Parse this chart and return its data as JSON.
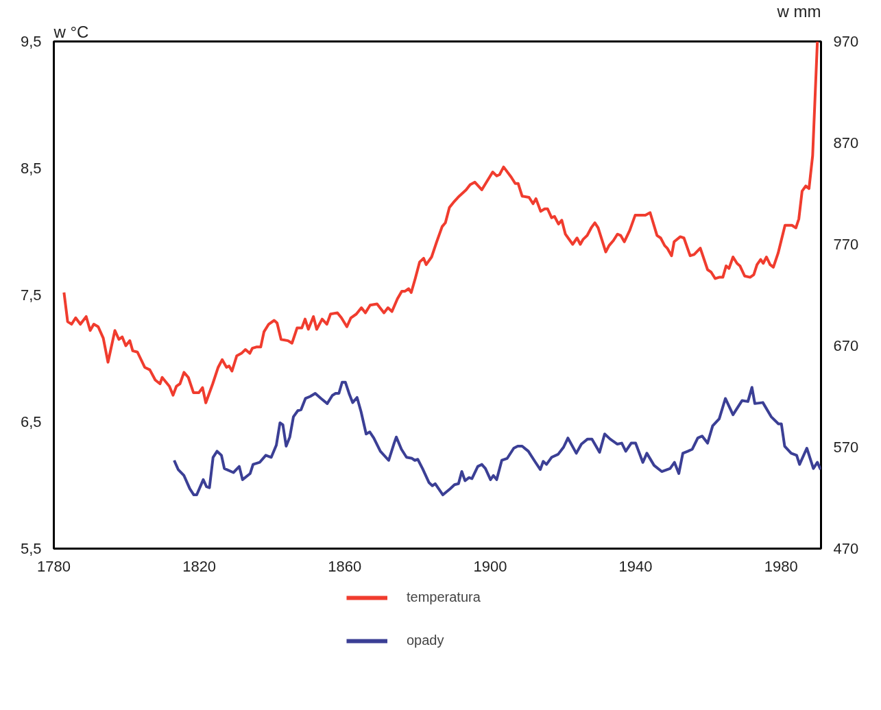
{
  "chart_data": {
    "type": "line",
    "ylabel": "w °C",
    "y2label": "w mm",
    "xlim": [
      1780,
      1991
    ],
    "xticks": [
      1780,
      1820,
      1860,
      1900,
      1940,
      1980
    ],
    "ylim": [
      5.5,
      9.5
    ],
    "yticks": [
      {
        "value": 5.5,
        "label": "5,5"
      },
      {
        "value": 6.5,
        "label": "6,5"
      },
      {
        "value": 7.5,
        "label": "7,5"
      },
      {
        "value": 8.5,
        "label": "8,5"
      },
      {
        "value": 9.5,
        "label": "9,5"
      }
    ],
    "y2lim": [
      470,
      970
    ],
    "y2ticks": [
      470,
      570,
      670,
      770,
      870,
      970
    ],
    "grid": false,
    "legend": "bottom",
    "line_style": "solid",
    "series": [
      {
        "name": "temperatura",
        "color": "#f03c2e",
        "x": [
          1782.8,
          1783.8,
          1784.9,
          1786,
          1787.3,
          1788.9,
          1790,
          1791,
          1792.2,
          1793.6,
          1794.9,
          1796.8,
          1797.9,
          1798.8,
          1799.8,
          1800.9,
          1801.7,
          1803,
          1805,
          1806.4,
          1807.9,
          1809.2,
          1809.8,
          1811.8,
          1812.8,
          1813.7,
          1814.7,
          1815.8,
          1817,
          1818.4,
          1819.9,
          1820.9,
          1821.8,
          1823.7,
          1825.2,
          1826.3,
          1827.5,
          1828.2,
          1829,
          1830.3,
          1831.6,
          1832.7,
          1833.9,
          1834.6,
          1835.7,
          1836.9,
          1837.8,
          1839.1,
          1840.6,
          1841.4,
          1842.5,
          1844.4,
          1845.5,
          1846.9,
          1848.2,
          1849.1,
          1850,
          1851.4,
          1852.3,
          1853.8,
          1855.1,
          1856.1,
          1858,
          1859.1,
          1860.6,
          1861.7,
          1863.2,
          1864.6,
          1865.7,
          1867,
          1868.9,
          1870.8,
          1871.9,
          1873,
          1874.5,
          1875.7,
          1876.6,
          1877.6,
          1878.3,
          1879.4,
          1880.6,
          1881.7,
          1882.4,
          1883.9,
          1885.3,
          1886.8,
          1887.7,
          1888.8,
          1890.2,
          1891.5,
          1893.4,
          1894.5,
          1895.8,
          1897.7,
          1899.2,
          1900.7,
          1901.8,
          1902.6,
          1903.7,
          1905.8,
          1906.9,
          1907.7,
          1908.8,
          1910.7,
          1911.8,
          1912.6,
          1913.9,
          1915.0,
          1915.8,
          1916.9,
          1917.7,
          1918.8,
          1919.7,
          1920.7,
          1922.7,
          1923.9,
          1924.8,
          1925.6,
          1926.7,
          1927.8,
          1928.8,
          1929.7,
          1931.8,
          1932.7,
          1933.9,
          1935.0,
          1935.9,
          1936.9,
          1938.4,
          1939.9,
          1941.0,
          1942.7,
          1944.0,
          1945.9,
          1946.9,
          1948.0,
          1948.7,
          1949.9,
          1950.6,
          1952.3,
          1953.3,
          1955.0,
          1956.1,
          1957.8,
          1959.8,
          1960.8,
          1961.9,
          1963.0,
          1964.0,
          1964.9,
          1965.7,
          1966.8,
          1967.9,
          1968.7,
          1970.0,
          1971.5,
          1972.5,
          1973.4,
          1974.4,
          1975.1,
          1976.0,
          1977.0,
          1977.9,
          1979.2,
          1981.1,
          1983.0,
          1984.1,
          1984.9,
          1985.8,
          1986.8,
          1987.7,
          1988.7,
          1990.0
        ],
        "values": [
          7.52,
          7.29,
          7.27,
          7.32,
          7.27,
          7.33,
          7.22,
          7.27,
          7.25,
          7.16,
          6.97,
          7.22,
          7.15,
          7.17,
          7.1,
          7.14,
          7.06,
          7.05,
          6.93,
          6.91,
          6.83,
          6.8,
          6.85,
          6.78,
          6.71,
          6.78,
          6.8,
          6.89,
          6.85,
          6.73,
          6.73,
          6.77,
          6.65,
          6.8,
          6.93,
          6.99,
          6.93,
          6.94,
          6.9,
          7.02,
          7.04,
          7.07,
          7.04,
          7.08,
          7.09,
          7.09,
          7.21,
          7.27,
          7.3,
          7.28,
          7.15,
          7.14,
          7.12,
          7.24,
          7.24,
          7.31,
          7.23,
          7.33,
          7.23,
          7.31,
          7.27,
          7.35,
          7.36,
          7.32,
          7.25,
          7.32,
          7.35,
          7.4,
          7.36,
          7.42,
          7.43,
          7.36,
          7.4,
          7.37,
          7.47,
          7.53,
          7.53,
          7.55,
          7.52,
          7.63,
          7.76,
          7.79,
          7.74,
          7.8,
          7.92,
          8.04,
          8.07,
          8.19,
          8.24,
          8.28,
          8.33,
          8.37,
          8.39,
          8.33,
          8.4,
          8.47,
          8.44,
          8.45,
          8.51,
          8.43,
          8.38,
          8.38,
          8.28,
          8.27,
          8.22,
          8.26,
          8.16,
          8.18,
          8.18,
          8.11,
          8.12,
          8.06,
          8.09,
          7.98,
          7.9,
          7.95,
          7.9,
          7.94,
          7.97,
          8.03,
          8.07,
          8.03,
          7.84,
          7.89,
          7.93,
          7.98,
          7.97,
          7.92,
          8.01,
          8.13,
          8.13,
          8.13,
          8.15,
          7.97,
          7.95,
          7.89,
          7.87,
          7.81,
          7.92,
          7.96,
          7.95,
          7.81,
          7.82,
          7.87,
          7.7,
          7.68,
          7.63,
          7.64,
          7.64,
          7.73,
          7.71,
          7.8,
          7.75,
          7.73,
          7.65,
          7.64,
          7.66,
          7.74,
          7.78,
          7.75,
          7.8,
          7.74,
          7.72,
          7.83,
          8.05,
          8.05,
          8.03,
          8.1,
          8.32,
          8.36,
          8.34,
          8.6,
          9.5
        ]
      },
      {
        "name": "opady",
        "color": "#3b3f95",
        "axis": "y2",
        "x": [
          1813.1,
          1814.2,
          1815.8,
          1817.4,
          1818.5,
          1819.3,
          1821.1,
          1822.0,
          1822.8,
          1823.8,
          1824.9,
          1826.1,
          1826.9,
          1829.4,
          1831.0,
          1831.9,
          1834.0,
          1834.8,
          1836.6,
          1838.3,
          1839.8,
          1841.2,
          1842.2,
          1843.0,
          1843.9,
          1844.9,
          1845.9,
          1847.1,
          1848.0,
          1849.2,
          1850.5,
          1851.9,
          1853.5,
          1855.2,
          1856.6,
          1857.5,
          1858.4,
          1859.3,
          1860.2,
          1861.3,
          1862.2,
          1863.4,
          1864.5,
          1865.9,
          1866.9,
          1868.0,
          1869.8,
          1872.1,
          1873.6,
          1874.2,
          1875.6,
          1877.0,
          1878.5,
          1879.3,
          1880.1,
          1881.4,
          1883.2,
          1884.1,
          1884.9,
          1887.0,
          1889.0,
          1890.2,
          1891.3,
          1892.2,
          1893.1,
          1894.2,
          1895.0,
          1896.6,
          1897.7,
          1898.7,
          1900.1,
          1900.9,
          1901.8,
          1903.2,
          1904.7,
          1906.5,
          1907.6,
          1908.8,
          1910.5,
          1912.3,
          1913.8,
          1914.6,
          1915.5,
          1916.9,
          1918.7,
          1920.2,
          1921.4,
          1923.7,
          1925.1,
          1926.8,
          1928.0,
          1930.1,
          1931.5,
          1933.0,
          1935.0,
          1936.2,
          1937.3,
          1938.8,
          1940.0,
          1942.0,
          1943.1,
          1945.1,
          1947.2,
          1949.5,
          1950.7,
          1951.9,
          1953.0,
          1954.4,
          1955.6,
          1957.1,
          1958.3,
          1959.8,
          1961.2,
          1963.0,
          1964.7,
          1966.8,
          1969.3,
          1970.9,
          1972.0,
          1972.8,
          1975.0,
          1977.3,
          1979.3,
          1980.1,
          1981.0,
          1982.8,
          1984.3,
          1985.1,
          1987.1,
          1988.9,
          1990.0,
          1990.9
        ],
        "values": [
          557,
          548,
          542,
          529,
          523,
          523,
          538,
          531,
          530,
          560,
          566,
          562,
          549,
          545,
          551,
          538,
          544,
          553,
          555,
          562,
          560,
          572,
          594,
          592,
          571,
          580,
          600,
          606,
          607,
          618,
          620,
          623,
          618,
          613,
          621,
          623,
          623,
          634,
          634,
          622,
          614,
          619,
          605,
          583,
          585,
          579,
          566,
          557,
          574,
          580,
          568,
          560,
          559,
          557,
          558,
          549,
          535,
          532,
          534,
          523,
          529,
          533,
          534,
          546,
          537,
          540,
          539,
          551,
          553,
          549,
          538,
          542,
          538,
          557,
          559,
          569,
          571,
          571,
          566,
          556,
          548,
          556,
          553,
          560,
          563,
          570,
          579,
          564,
          573,
          578,
          578,
          565,
          583,
          578,
          573,
          574,
          566,
          574,
          574,
          555,
          564,
          552,
          546,
          549,
          555,
          544,
          564,
          566,
          568,
          579,
          581,
          574,
          591,
          598,
          618,
          602,
          616,
          615,
          629,
          613,
          614,
          600,
          593,
          593,
          571,
          564,
          562,
          553,
          569,
          549,
          555,
          548
        ]
      }
    ]
  }
}
